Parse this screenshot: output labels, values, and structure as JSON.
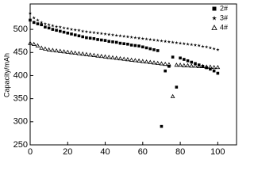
{
  "chart_data": {
    "type": "scatter",
    "y_label": "Capacity/mAh",
    "x": [
      0,
      2,
      4,
      6,
      8,
      10,
      12,
      14,
      16,
      18,
      20,
      22,
      24,
      26,
      28,
      30,
      32,
      34,
      36,
      38,
      40,
      42,
      44,
      46,
      48,
      50,
      52,
      54,
      56,
      58,
      60,
      62,
      64,
      66,
      68,
      70,
      72,
      74,
      76,
      78,
      80,
      82,
      84,
      86,
      88,
      90,
      92,
      94,
      96,
      98,
      100
    ],
    "series": [
      {
        "name": "2#",
        "color": "#000000",
        "marker": "square",
        "values": [
          520,
          515,
          512,
          510,
          505,
          503,
          500,
          498,
          496,
          494,
          492,
          490,
          488,
          486,
          484,
          482,
          481,
          480,
          478,
          477,
          476,
          474,
          473,
          472,
          470,
          469,
          468,
          466,
          465,
          464,
          462,
          460,
          458,
          456,
          454,
          290,
          410,
          420,
          440,
          375,
          438,
          435,
          432,
          429,
          426,
          423,
          420,
          417,
          414,
          410,
          405
        ]
      },
      {
        "name": "3#",
        "color": "#000000",
        "marker": "star",
        "values": [
          535,
          525,
          520,
          515,
          512,
          510,
          508,
          506,
          505,
          503,
          502,
          500,
          499,
          498,
          496,
          495,
          494,
          493,
          492,
          491,
          490,
          489,
          488,
          487,
          486,
          485,
          484,
          483,
          482,
          481,
          480,
          479,
          478,
          477,
          476,
          475,
          474,
          473,
          472,
          471,
          470,
          469,
          468,
          467,
          466,
          465,
          463,
          462,
          460,
          458,
          456
        ]
      },
      {
        "name": "4#",
        "color": "#000000",
        "marker": "triangle",
        "values": [
          470,
          468,
          465,
          460,
          458,
          456,
          455,
          454,
          453,
          452,
          451,
          450,
          449,
          448,
          447,
          446,
          445,
          444,
          443,
          442,
          441,
          440,
          439,
          438,
          437,
          436,
          435,
          434,
          433,
          432,
          431,
          430,
          429,
          428,
          427,
          426,
          425,
          424,
          355,
          423,
          423,
          422,
          422,
          421,
          421,
          420,
          420,
          419,
          419,
          418,
          418
        ]
      }
    ],
    "xlim": [
      0,
      110
    ],
    "xticks": [
      0,
      20,
      40,
      60,
      80,
      100
    ],
    "ylim": [
      250,
      555
    ],
    "yticks": [
      250,
      300,
      350,
      400,
      450,
      500
    ],
    "legend": "upper right"
  }
}
